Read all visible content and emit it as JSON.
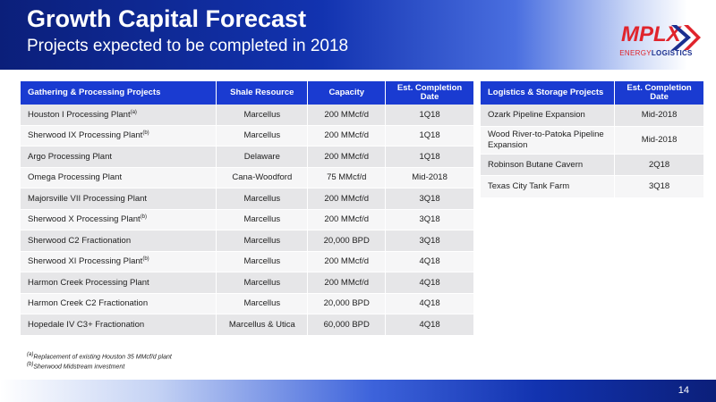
{
  "header": {
    "title": "Growth Capital Forecast",
    "subtitle": "Projects expected to be completed in 2018"
  },
  "logo": {
    "brand": "MPLX",
    "tagline_a": "ENERGY",
    "tagline_b": "LOGISTICS",
    "colors": {
      "red": "#e0242c",
      "blue": "#1a2f8f"
    }
  },
  "gathering": {
    "headers": [
      "Gathering & Processing Projects",
      "Shale Resource",
      "Capacity",
      "Est. Completion Date"
    ],
    "rows": [
      {
        "name": "Houston I Processing Plant",
        "sup": "(a)",
        "shale": "Marcellus",
        "capacity": "200 MMcf/d",
        "date": "1Q18"
      },
      {
        "name": "Sherwood IX Processing Plant",
        "sup": "(b)",
        "shale": "Marcellus",
        "capacity": "200 MMcf/d",
        "date": "1Q18"
      },
      {
        "name": "Argo Processing Plant",
        "sup": "",
        "shale": "Delaware",
        "capacity": "200 MMcf/d",
        "date": "1Q18"
      },
      {
        "name": "Omega Processing Plant",
        "sup": "",
        "shale": "Cana-Woodford",
        "capacity": "75 MMcf/d",
        "date": "Mid-2018"
      },
      {
        "name": "Majorsville VII Processing Plant",
        "sup": "",
        "shale": "Marcellus",
        "capacity": "200 MMcf/d",
        "date": "3Q18"
      },
      {
        "name": "Sherwood X Processing Plant",
        "sup": "(b)",
        "shale": "Marcellus",
        "capacity": "200 MMcf/d",
        "date": "3Q18"
      },
      {
        "name": "Sherwood C2 Fractionation",
        "sup": "",
        "shale": "Marcellus",
        "capacity": "20,000 BPD",
        "date": "3Q18"
      },
      {
        "name": "Sherwood XI Processing Plant",
        "sup": "(b)",
        "shale": "Marcellus",
        "capacity": "200 MMcf/d",
        "date": "4Q18"
      },
      {
        "name": "Harmon Creek Processing Plant",
        "sup": "",
        "shale": "Marcellus",
        "capacity": "200 MMcf/d",
        "date": "4Q18"
      },
      {
        "name": "Harmon Creek C2 Fractionation",
        "sup": "",
        "shale": "Marcellus",
        "capacity": "20,000 BPD",
        "date": "4Q18"
      },
      {
        "name": "Hopedale IV C3+ Fractionation",
        "sup": "",
        "shale": "Marcellus & Utica",
        "capacity": "60,000 BPD",
        "date": "4Q18"
      }
    ]
  },
  "logistics": {
    "headers": [
      "Logistics & Storage Projects",
      "Est. Completion Date"
    ],
    "rows": [
      {
        "name": "Ozark Pipeline Expansion",
        "date": "Mid-2018"
      },
      {
        "name": "Wood River-to-Patoka Pipeline Expansion",
        "date": "Mid-2018"
      },
      {
        "name": "Robinson Butane Cavern",
        "date": "2Q18"
      },
      {
        "name": "Texas City Tank Farm",
        "date": "3Q18"
      }
    ]
  },
  "footnotes": {
    "a_mark": "(a)",
    "a_text": "Replacement of existing Houston 35 MMcf/d plant",
    "b_mark": "(b)",
    "b_text": "Sherwood Midstream investment"
  },
  "page_number": "14"
}
